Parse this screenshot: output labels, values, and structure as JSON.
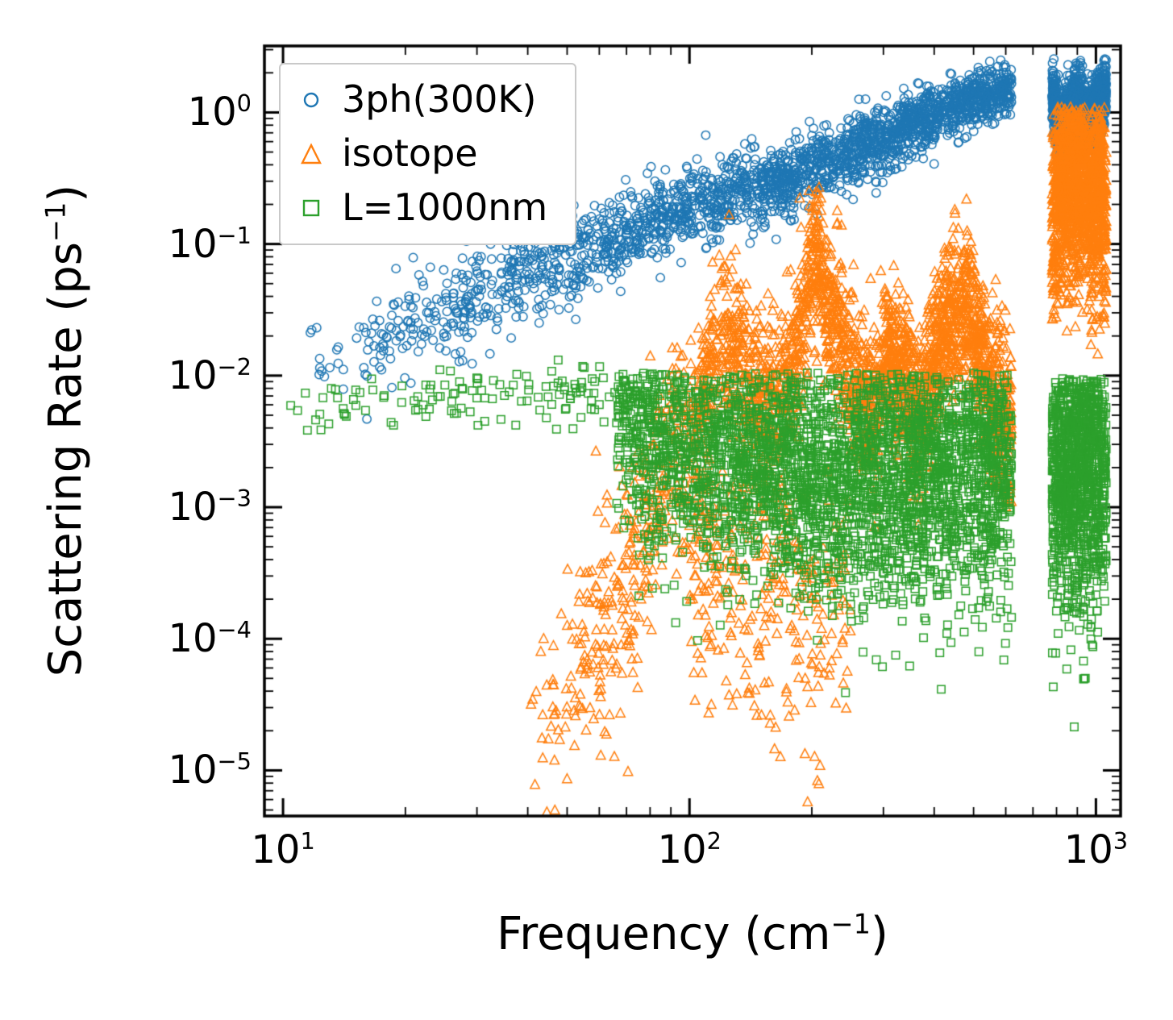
{
  "figure": {
    "background": "#ffffff",
    "frame_color": "#000000"
  },
  "axes": {
    "x": {
      "label_prefix": "Frequency (cm",
      "label_sup": "−1",
      "label_suffix": ")",
      "scale": "log",
      "major_ticks": [
        {
          "mantissa": "10",
          "exp": "1",
          "value": 10
        },
        {
          "mantissa": "10",
          "exp": "2",
          "value": 100
        },
        {
          "mantissa": "10",
          "exp": "3",
          "value": 1000
        }
      ]
    },
    "y": {
      "label_prefix": "Scattering Rate (ps",
      "label_sup": "−1",
      "label_suffix": ")",
      "scale": "log",
      "major_ticks": [
        {
          "mantissa": "10",
          "exp": "0",
          "value": 1
        },
        {
          "mantissa": "10",
          "exp": "−1",
          "value": 0.1
        },
        {
          "mantissa": "10",
          "exp": "−2",
          "value": 0.01
        },
        {
          "mantissa": "10",
          "exp": "−3",
          "value": 0.001
        },
        {
          "mantissa": "10",
          "exp": "−4",
          "value": 0.0001
        },
        {
          "mantissa": "10",
          "exp": "−5",
          "value": 1e-05
        }
      ]
    }
  },
  "legend": {
    "items": [
      {
        "label": "3ph(300K)",
        "marker": "circle",
        "color": "#1f77b4"
      },
      {
        "label": "isotope",
        "marker": "triangle",
        "color": "#ff7f0e"
      },
      {
        "label": "L=1000nm",
        "marker": "square",
        "color": "#2ca02c"
      }
    ]
  },
  "chart_data": {
    "type": "scatter",
    "title": "",
    "xlabel": "Frequency (cm⁻¹)",
    "ylabel": "Scattering Rate (ps⁻¹)",
    "x_scale": "log",
    "y_scale": "log",
    "xlim": [
      9,
      1150
    ],
    "ylim": [
      4.5e-06,
      3.2
    ],
    "grid": false,
    "legend_position": "upper left",
    "band_gap_x": [
      620,
      780
    ],
    "seed": 20240701,
    "series": [
      {
        "name": "3ph(300K)",
        "marker": "circle",
        "color": "#1f77b4",
        "clusters": [
          {
            "x_range": [
              10.5,
              620
            ],
            "count": 2300,
            "x_bias": 2.0,
            "trend": [
              [
                10.5,
                0.009
              ],
              [
                14,
                0.013
              ],
              [
                20,
                0.022
              ],
              [
                28,
                0.035
              ],
              [
                40,
                0.06
              ],
              [
                55,
                0.085
              ],
              [
                70,
                0.12
              ],
              [
                90,
                0.17
              ],
              [
                110,
                0.21
              ],
              [
                140,
                0.26
              ],
              [
                180,
                0.33
              ],
              [
                230,
                0.45
              ],
              [
                300,
                0.65
              ],
              [
                380,
                0.9
              ],
              [
                460,
                1.15
              ],
              [
                540,
                1.35
              ],
              [
                620,
                1.5
              ]
            ],
            "spread": [
              0.22,
              0.1
            ],
            "y_max": 2.6,
            "y_min": 0.003
          },
          {
            "x_range": [
              780,
              1060
            ],
            "count": 1250,
            "x_bias": 1.0,
            "trend": [
              [
                780,
                1.6
              ],
              [
                800,
                1.0
              ],
              [
                820,
                0.75
              ],
              [
                845,
                0.9
              ],
              [
                870,
                1.1
              ],
              [
                900,
                1.2
              ],
              [
                930,
                1.0
              ],
              [
                960,
                0.85
              ],
              [
                990,
                1.0
              ],
              [
                1020,
                1.2
              ],
              [
                1060,
                1.5
              ]
            ],
            "spread": [
              0.13,
              0.13
            ],
            "y_max": 2.6,
            "y_min": 0.45
          }
        ]
      },
      {
        "name": "isotope",
        "marker": "triangle",
        "color": "#ff7f0e",
        "clusters": [
          {
            "x_range": [
              40,
              115
            ],
            "count": 420,
            "x_bias": 1.6,
            "trend": [
              [
                40,
                1.5e-05
              ],
              [
                50,
                4e-05
              ],
              [
                60,
                0.00011
              ],
              [
                70,
                0.0003
              ],
              [
                80,
                0.0008
              ],
              [
                90,
                0.0018
              ],
              [
                100,
                0.0035
              ],
              [
                115,
                0.006
              ]
            ],
            "spread": [
              0.45,
              0.5
            ],
            "y_max": 0.02,
            "y_min": 4.5e-06
          },
          {
            "x_range": [
              100,
              620
            ],
            "count": 2400,
            "x_bias": 1.4,
            "trend": [
              [
                100,
                0.005
              ],
              [
                108,
                0.009
              ],
              [
                115,
                0.016
              ],
              [
                122,
                0.022
              ],
              [
                130,
                0.016
              ],
              [
                140,
                0.009
              ],
              [
                150,
                0.0065
              ],
              [
                160,
                0.006
              ],
              [
                175,
                0.008
              ],
              [
                188,
                0.02
              ],
              [
                198,
                0.06
              ],
              [
                205,
                0.1
              ],
              [
                212,
                0.06
              ],
              [
                220,
                0.025
              ],
              [
                228,
                0.035
              ],
              [
                235,
                0.02
              ],
              [
                245,
                0.012
              ],
              [
                258,
                0.008
              ],
              [
                270,
                0.0065
              ],
              [
                285,
                0.007
              ],
              [
                300,
                0.011
              ],
              [
                315,
                0.014
              ],
              [
                330,
                0.01
              ],
              [
                350,
                0.007
              ],
              [
                370,
                0.0055
              ],
              [
                390,
                0.009
              ],
              [
                410,
                0.018
              ],
              [
                430,
                0.028
              ],
              [
                455,
                0.022
              ],
              [
                475,
                0.035
              ],
              [
                495,
                0.028
              ],
              [
                515,
                0.015
              ],
              [
                540,
                0.009
              ],
              [
                570,
                0.0065
              ],
              [
                600,
                0.0055
              ],
              [
                620,
                0.005
              ]
            ],
            "spread": [
              0.32,
              0.3
            ],
            "y_max": 0.28,
            "y_min": 5e-06
          },
          {
            "x_range": [
              100,
              250
            ],
            "count": 300,
            "x_bias": 1.0,
            "trend": [
              [
                100,
                0.0004
              ],
              [
                130,
                0.0003
              ],
              [
                160,
                0.00025
              ],
              [
                200,
                0.00015
              ],
              [
                250,
                0.0001
              ]
            ],
            "spread": [
              0.55,
              0.55
            ],
            "y_max": 0.002,
            "y_min": 4.5e-06
          },
          {
            "x_range": [
              780,
              1060
            ],
            "count": 1450,
            "x_bias": 1.0,
            "trend": [
              [
                780,
                0.12
              ],
              [
                800,
                0.3
              ],
              [
                820,
                0.22
              ],
              [
                840,
                0.35
              ],
              [
                860,
                0.28
              ],
              [
                880,
                0.38
              ],
              [
                900,
                0.3
              ],
              [
                920,
                0.42
              ],
              [
                945,
                0.3
              ],
              [
                970,
                0.2
              ],
              [
                1000,
                0.25
              ],
              [
                1030,
                0.35
              ],
              [
                1060,
                0.12
              ]
            ],
            "spread": [
              0.42,
              0.42
            ],
            "y_max": 1.1,
            "y_min": 0.002
          }
        ]
      },
      {
        "name": "L=1000nm",
        "marker": "square",
        "color": "#2ca02c",
        "clusters": [
          {
            "x_range": [
              10,
              72
            ],
            "count": 130,
            "x_bias": 1.15,
            "trend": [
              [
                10,
                0.0055
              ],
              [
                20,
                0.0065
              ],
              [
                35,
                0.007
              ],
              [
                50,
                0.0075
              ],
              [
                72,
                0.007
              ]
            ],
            "spread": [
              0.1,
              0.12
            ],
            "y_max": 0.015,
            "y_min": 0.0004
          },
          {
            "x_range": [
              66,
              620
            ],
            "count": 3200,
            "x_bias": 1.25,
            "trend": [
              [
                66,
                0.006
              ],
              [
                75,
                0.0045
              ],
              [
                85,
                0.0035
              ],
              [
                100,
                0.003
              ],
              [
                120,
                0.0026
              ],
              [
                150,
                0.0023
              ],
              [
                200,
                0.002
              ],
              [
                260,
                0.0019
              ],
              [
                330,
                0.0019
              ],
              [
                400,
                0.002
              ],
              [
                480,
                0.0022
              ],
              [
                560,
                0.0023
              ],
              [
                620,
                0.0024
              ]
            ],
            "spread": [
              0.42,
              0.52
            ],
            "y_max": 0.0105,
            "y_min": 5e-06
          },
          {
            "x_range": [
              780,
              1060
            ],
            "count": 1150,
            "x_bias": 1.0,
            "trend": [
              [
                780,
                0.0022
              ],
              [
                820,
                0.0026
              ],
              [
                860,
                0.0022
              ],
              [
                900,
                0.0024
              ],
              [
                950,
                0.0022
              ],
              [
                1000,
                0.0024
              ],
              [
                1060,
                0.0026
              ]
            ],
            "spread": [
              0.58,
              0.58
            ],
            "y_max": 0.0095,
            "y_min": 5e-06
          }
        ]
      }
    ]
  }
}
